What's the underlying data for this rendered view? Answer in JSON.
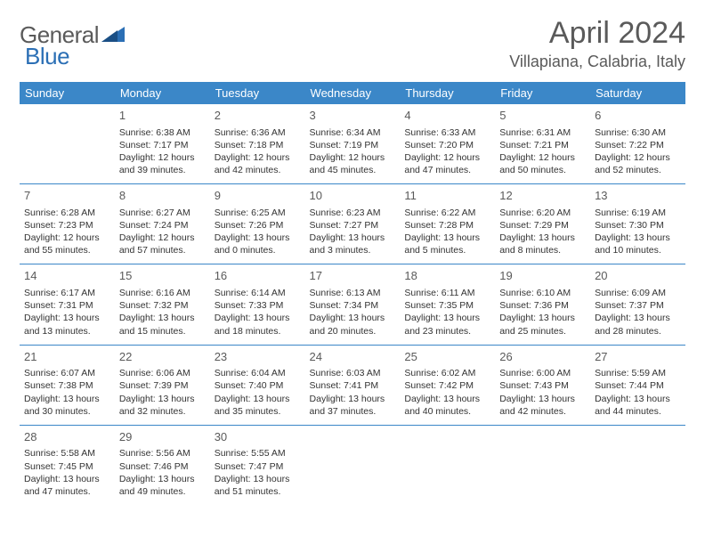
{
  "logo": {
    "text_general": "General",
    "text_blue": "Blue",
    "icon_color": "#2b6fb5"
  },
  "title": {
    "month_year": "April 2024",
    "location": "Villapiana, Calabria, Italy"
  },
  "colors": {
    "header_bg": "#3b87c8",
    "header_text": "#ffffff",
    "row_border": "#3b87c8",
    "day_num": "#5a5a5a",
    "body_text": "#333333",
    "title_text": "#5a5a5a"
  },
  "weekdays": [
    "Sunday",
    "Monday",
    "Tuesday",
    "Wednesday",
    "Thursday",
    "Friday",
    "Saturday"
  ],
  "weeks": [
    [
      null,
      {
        "n": "1",
        "sr": "Sunrise: 6:38 AM",
        "ss": "Sunset: 7:17 PM",
        "d1": "Daylight: 12 hours",
        "d2": "and 39 minutes."
      },
      {
        "n": "2",
        "sr": "Sunrise: 6:36 AM",
        "ss": "Sunset: 7:18 PM",
        "d1": "Daylight: 12 hours",
        "d2": "and 42 minutes."
      },
      {
        "n": "3",
        "sr": "Sunrise: 6:34 AM",
        "ss": "Sunset: 7:19 PM",
        "d1": "Daylight: 12 hours",
        "d2": "and 45 minutes."
      },
      {
        "n": "4",
        "sr": "Sunrise: 6:33 AM",
        "ss": "Sunset: 7:20 PM",
        "d1": "Daylight: 12 hours",
        "d2": "and 47 minutes."
      },
      {
        "n": "5",
        "sr": "Sunrise: 6:31 AM",
        "ss": "Sunset: 7:21 PM",
        "d1": "Daylight: 12 hours",
        "d2": "and 50 minutes."
      },
      {
        "n": "6",
        "sr": "Sunrise: 6:30 AM",
        "ss": "Sunset: 7:22 PM",
        "d1": "Daylight: 12 hours",
        "d2": "and 52 minutes."
      }
    ],
    [
      {
        "n": "7",
        "sr": "Sunrise: 6:28 AM",
        "ss": "Sunset: 7:23 PM",
        "d1": "Daylight: 12 hours",
        "d2": "and 55 minutes."
      },
      {
        "n": "8",
        "sr": "Sunrise: 6:27 AM",
        "ss": "Sunset: 7:24 PM",
        "d1": "Daylight: 12 hours",
        "d2": "and 57 minutes."
      },
      {
        "n": "9",
        "sr": "Sunrise: 6:25 AM",
        "ss": "Sunset: 7:26 PM",
        "d1": "Daylight: 13 hours",
        "d2": "and 0 minutes."
      },
      {
        "n": "10",
        "sr": "Sunrise: 6:23 AM",
        "ss": "Sunset: 7:27 PM",
        "d1": "Daylight: 13 hours",
        "d2": "and 3 minutes."
      },
      {
        "n": "11",
        "sr": "Sunrise: 6:22 AM",
        "ss": "Sunset: 7:28 PM",
        "d1": "Daylight: 13 hours",
        "d2": "and 5 minutes."
      },
      {
        "n": "12",
        "sr": "Sunrise: 6:20 AM",
        "ss": "Sunset: 7:29 PM",
        "d1": "Daylight: 13 hours",
        "d2": "and 8 minutes."
      },
      {
        "n": "13",
        "sr": "Sunrise: 6:19 AM",
        "ss": "Sunset: 7:30 PM",
        "d1": "Daylight: 13 hours",
        "d2": "and 10 minutes."
      }
    ],
    [
      {
        "n": "14",
        "sr": "Sunrise: 6:17 AM",
        "ss": "Sunset: 7:31 PM",
        "d1": "Daylight: 13 hours",
        "d2": "and 13 minutes."
      },
      {
        "n": "15",
        "sr": "Sunrise: 6:16 AM",
        "ss": "Sunset: 7:32 PM",
        "d1": "Daylight: 13 hours",
        "d2": "and 15 minutes."
      },
      {
        "n": "16",
        "sr": "Sunrise: 6:14 AM",
        "ss": "Sunset: 7:33 PM",
        "d1": "Daylight: 13 hours",
        "d2": "and 18 minutes."
      },
      {
        "n": "17",
        "sr": "Sunrise: 6:13 AM",
        "ss": "Sunset: 7:34 PM",
        "d1": "Daylight: 13 hours",
        "d2": "and 20 minutes."
      },
      {
        "n": "18",
        "sr": "Sunrise: 6:11 AM",
        "ss": "Sunset: 7:35 PM",
        "d1": "Daylight: 13 hours",
        "d2": "and 23 minutes."
      },
      {
        "n": "19",
        "sr": "Sunrise: 6:10 AM",
        "ss": "Sunset: 7:36 PM",
        "d1": "Daylight: 13 hours",
        "d2": "and 25 minutes."
      },
      {
        "n": "20",
        "sr": "Sunrise: 6:09 AM",
        "ss": "Sunset: 7:37 PM",
        "d1": "Daylight: 13 hours",
        "d2": "and 28 minutes."
      }
    ],
    [
      {
        "n": "21",
        "sr": "Sunrise: 6:07 AM",
        "ss": "Sunset: 7:38 PM",
        "d1": "Daylight: 13 hours",
        "d2": "and 30 minutes."
      },
      {
        "n": "22",
        "sr": "Sunrise: 6:06 AM",
        "ss": "Sunset: 7:39 PM",
        "d1": "Daylight: 13 hours",
        "d2": "and 32 minutes."
      },
      {
        "n": "23",
        "sr": "Sunrise: 6:04 AM",
        "ss": "Sunset: 7:40 PM",
        "d1": "Daylight: 13 hours",
        "d2": "and 35 minutes."
      },
      {
        "n": "24",
        "sr": "Sunrise: 6:03 AM",
        "ss": "Sunset: 7:41 PM",
        "d1": "Daylight: 13 hours",
        "d2": "and 37 minutes."
      },
      {
        "n": "25",
        "sr": "Sunrise: 6:02 AM",
        "ss": "Sunset: 7:42 PM",
        "d1": "Daylight: 13 hours",
        "d2": "and 40 minutes."
      },
      {
        "n": "26",
        "sr": "Sunrise: 6:00 AM",
        "ss": "Sunset: 7:43 PM",
        "d1": "Daylight: 13 hours",
        "d2": "and 42 minutes."
      },
      {
        "n": "27",
        "sr": "Sunrise: 5:59 AM",
        "ss": "Sunset: 7:44 PM",
        "d1": "Daylight: 13 hours",
        "d2": "and 44 minutes."
      }
    ],
    [
      {
        "n": "28",
        "sr": "Sunrise: 5:58 AM",
        "ss": "Sunset: 7:45 PM",
        "d1": "Daylight: 13 hours",
        "d2": "and 47 minutes."
      },
      {
        "n": "29",
        "sr": "Sunrise: 5:56 AM",
        "ss": "Sunset: 7:46 PM",
        "d1": "Daylight: 13 hours",
        "d2": "and 49 minutes."
      },
      {
        "n": "30",
        "sr": "Sunrise: 5:55 AM",
        "ss": "Sunset: 7:47 PM",
        "d1": "Daylight: 13 hours",
        "d2": "and 51 minutes."
      },
      null,
      null,
      null,
      null
    ]
  ]
}
